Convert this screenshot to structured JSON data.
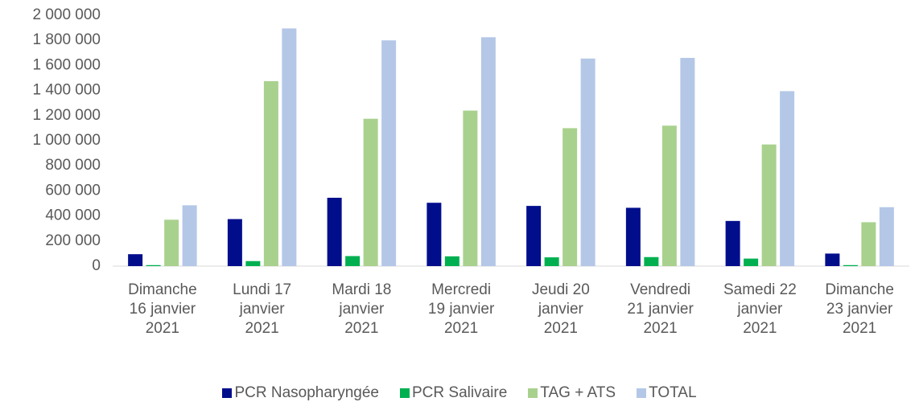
{
  "chart_data": {
    "type": "bar",
    "categories": [
      "Dimanche 16 janvier 2021",
      "Lundi 17 janvier 2021",
      "Mardi 18 janvier 2021",
      "Mercredi 19 janvier 2021",
      "Jeudi 20 janvier 2021",
      "Vendredi 21 janvier 2021",
      "Samedi 22 janvier 2021",
      "Dimanche 23 janvier 2021"
    ],
    "series": [
      {
        "name": "PCR Nasopharyngée",
        "color": "#000e8c",
        "values": [
          95000,
          375000,
          545000,
          505000,
          480000,
          465000,
          360000,
          100000
        ]
      },
      {
        "name": "PCR Salivaire",
        "color": "#00b050",
        "values": [
          8000,
          40000,
          80000,
          78000,
          70000,
          72000,
          60000,
          8000
        ]
      },
      {
        "name": "TAG + ATS",
        "color": "#a9d18e",
        "values": [
          370000,
          1475000,
          1175000,
          1240000,
          1100000,
          1120000,
          970000,
          350000
        ]
      },
      {
        "name": "TOTAL",
        "color": "#b4c7e7",
        "values": [
          485000,
          1895000,
          1800000,
          1825000,
          1655000,
          1660000,
          1395000,
          470000
        ]
      }
    ],
    "ylim": [
      0,
      2000000
    ],
    "yticks": [
      0,
      {
        "value": 200000,
        "label": "200 000"
      },
      {
        "value": 400000,
        "label": "400 000"
      },
      {
        "value": 600000,
        "label": "600 000"
      },
      {
        "value": 800000,
        "label": "800 000"
      },
      {
        "value": 1000000,
        "label": "1 000 000"
      },
      {
        "value": 1200000,
        "label": "1 200 000"
      },
      {
        "value": 1400000,
        "label": "1 400 000"
      },
      {
        "value": 1600000,
        "label": "1 600 000"
      },
      {
        "value": 1800000,
        "label": "1 800 000"
      },
      {
        "value": 2000000,
        "label": "2 000 000"
      }
    ],
    "grid": false,
    "legend": "bottom"
  }
}
